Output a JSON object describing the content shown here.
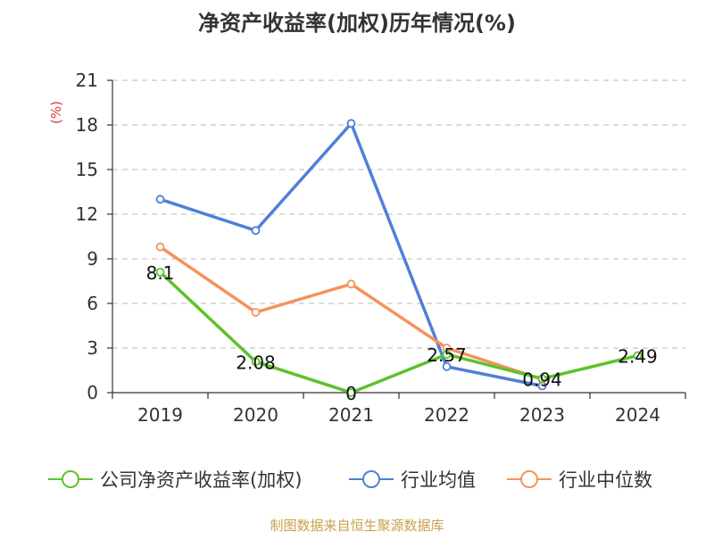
{
  "chart_data": {
    "type": "line",
    "title": "净资产收益率(加权)历年情况(%)",
    "ylabel": "(%)",
    "xlabel": "",
    "ylim": [
      0,
      21
    ],
    "yticks": [
      0,
      3,
      6,
      9,
      12,
      15,
      18,
      21
    ],
    "grid": true,
    "legend_position": "bottom",
    "categories": [
      "2019",
      "2020",
      "2021",
      "2022",
      "2023",
      "2024"
    ],
    "series": [
      {
        "name": "公司净资产收益率(加权)",
        "color": "#5ec22b",
        "values": [
          8.1,
          2.08,
          0,
          2.57,
          0.94,
          2.49
        ],
        "labels": [
          "8.1",
          "2.08",
          "0",
          "2.57",
          "0.94",
          "2.49"
        ]
      },
      {
        "name": "行业均值",
        "color": "#4f80d8",
        "values": [
          13.0,
          10.9,
          18.1,
          1.75,
          0.45,
          null
        ]
      },
      {
        "name": "行业中位数",
        "color": "#f7915d",
        "values": [
          9.8,
          5.4,
          7.3,
          3.0,
          0.9,
          null
        ]
      }
    ]
  },
  "ui": {
    "source": "制图数据来自恒生聚源数据库",
    "source_color": "#c8a24a",
    "ylabel_color": "#d83b3b",
    "axis_color": "#333333",
    "grid_color": "#c8c8c8"
  }
}
